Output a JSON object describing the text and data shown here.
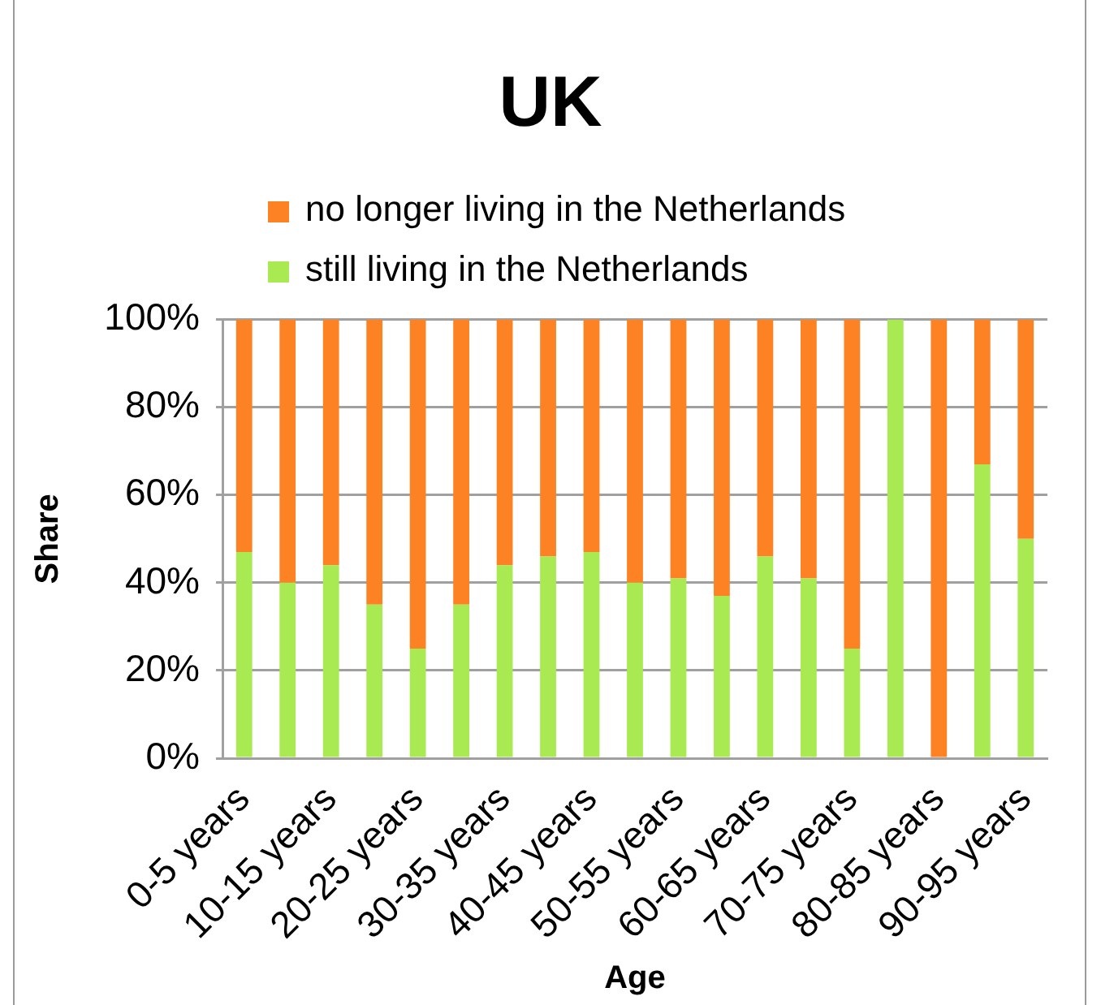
{
  "chart_data": {
    "type": "bar",
    "title": "UK",
    "xlabel": "Age",
    "ylabel": "Share",
    "categories": [
      "0-5 years",
      null,
      "10-15 years",
      null,
      "20-25 years",
      null,
      "30-35 years",
      null,
      "40-45 years",
      null,
      "50-55 years",
      null,
      "60-65 years",
      null,
      "70-75 years",
      null,
      "80-85 years",
      null,
      "90-95 years"
    ],
    "series": [
      {
        "name": "still living in the Netherlands",
        "color": "#a9e951",
        "values": [
          47,
          40,
          44,
          35,
          25,
          35,
          44,
          46,
          47,
          40,
          41,
          37,
          46,
          41,
          25,
          100,
          0,
          67,
          50
        ]
      },
      {
        "name": "no longer living in the Netherlands",
        "color": "#fd8223",
        "values": [
          53,
          60,
          56,
          65,
          75,
          65,
          56,
          54,
          53,
          60,
          59,
          63,
          54,
          59,
          75,
          0,
          100,
          33,
          50
        ]
      }
    ],
    "stacked": true,
    "ylim": [
      0,
      100
    ],
    "yticks": [
      {
        "value": 0,
        "label": "0%"
      },
      {
        "value": 20,
        "label": "20%"
      },
      {
        "value": 40,
        "label": "40%"
      },
      {
        "value": 60,
        "label": "60%"
      },
      {
        "value": 80,
        "label": "80%"
      },
      {
        "value": 100,
        "label": "100%"
      }
    ],
    "grid": "y",
    "legend": "top"
  }
}
